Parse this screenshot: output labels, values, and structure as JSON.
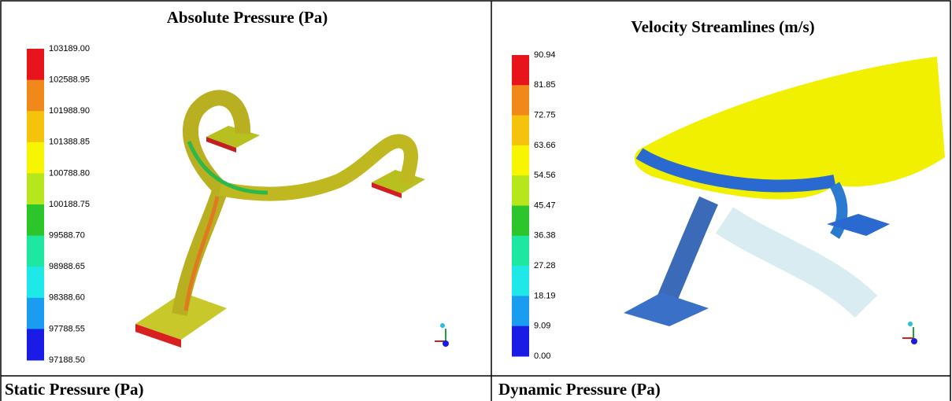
{
  "panels": [
    {
      "title": "Absolute Pressure (Pa)",
      "scale": [
        "103189.00",
        "102588.95",
        "101988.90",
        "101388.85",
        "100788.80",
        "100188.75",
        "99588.70",
        "98988.65",
        "98388.60",
        "97788.55",
        "97188.50"
      ]
    },
    {
      "title": "Velocity Streamlines (m/s)",
      "scale": [
        "90.94",
        "81.85",
        "72.75",
        "63.66",
        "54.56",
        "45.47",
        "36.38",
        "27.28",
        "18.19",
        "9.09",
        "0.00"
      ]
    }
  ],
  "bottom_row": [
    "Static Pressure (Pa)",
    "Dynamic Pressure (Pa)"
  ]
}
